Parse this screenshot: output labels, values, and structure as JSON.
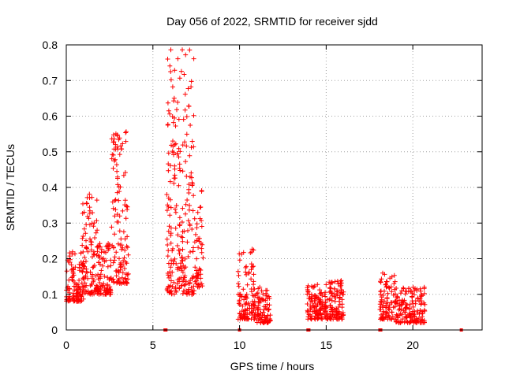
{
  "chart_data": {
    "type": "scatter",
    "title": "Day 056 of 2022, SRMTID for receiver sjdd",
    "xlabel": "GPS time / hours",
    "ylabel": "SRMTID / TECUs",
    "xlim": [
      0,
      24
    ],
    "ylim": [
      0,
      0.8
    ],
    "x_ticks": [
      0,
      5,
      10,
      15,
      20
    ],
    "x_tick_labels": [
      "0",
      "5",
      "10",
      "15",
      "20"
    ],
    "y_ticks": [
      0,
      0.1,
      0.2,
      0.3,
      0.4,
      0.5,
      0.6,
      0.7,
      0.8
    ],
    "y_tick_labels": [
      "0",
      "0.1",
      "0.2",
      "0.3",
      "0.4",
      "0.5",
      "0.6",
      "0.7",
      "0.8"
    ],
    "grid": true,
    "marker": "+",
    "color": "#ff0000",
    "series": [
      {
        "name": "SRMTID",
        "clusters": [
          {
            "x_start": 0.0,
            "x_end": 1.0,
            "y_low": 0.08,
            "y_high": 0.22,
            "count": 110
          },
          {
            "x_start": 0.9,
            "x_end": 1.8,
            "y_low": 0.1,
            "y_high": 0.4,
            "count": 110
          },
          {
            "x_start": 1.8,
            "x_end": 2.6,
            "y_low": 0.1,
            "y_high": 0.25,
            "count": 90
          },
          {
            "x_start": 2.6,
            "x_end": 3.6,
            "y_low": 0.13,
            "y_high": 0.56,
            "count": 130
          },
          {
            "x_start": 5.8,
            "x_end": 6.5,
            "y_low": 0.1,
            "y_high": 0.8,
            "count": 110
          },
          {
            "x_start": 6.5,
            "x_end": 7.4,
            "y_low": 0.1,
            "y_high": 0.8,
            "count": 130
          },
          {
            "x_start": 7.4,
            "x_end": 7.9,
            "y_low": 0.12,
            "y_high": 0.41,
            "count": 50
          },
          {
            "x_start": 9.9,
            "x_end": 10.9,
            "y_low": 0.03,
            "y_high": 0.23,
            "count": 110
          },
          {
            "x_start": 10.9,
            "x_end": 11.8,
            "y_low": 0.02,
            "y_high": 0.12,
            "count": 90
          },
          {
            "x_start": 13.9,
            "x_end": 15.0,
            "y_low": 0.03,
            "y_high": 0.13,
            "count": 120
          },
          {
            "x_start": 15.0,
            "x_end": 16.0,
            "y_low": 0.03,
            "y_high": 0.14,
            "count": 110
          },
          {
            "x_start": 18.1,
            "x_end": 19.0,
            "y_low": 0.03,
            "y_high": 0.16,
            "count": 90
          },
          {
            "x_start": 19.0,
            "x_end": 20.7,
            "y_low": 0.02,
            "y_high": 0.12,
            "count": 160
          }
        ],
        "zero_points": [
          5.7,
          5.75,
          10.0,
          13.95,
          14.0,
          18.1,
          18.15,
          22.8
        ]
      }
    ]
  }
}
